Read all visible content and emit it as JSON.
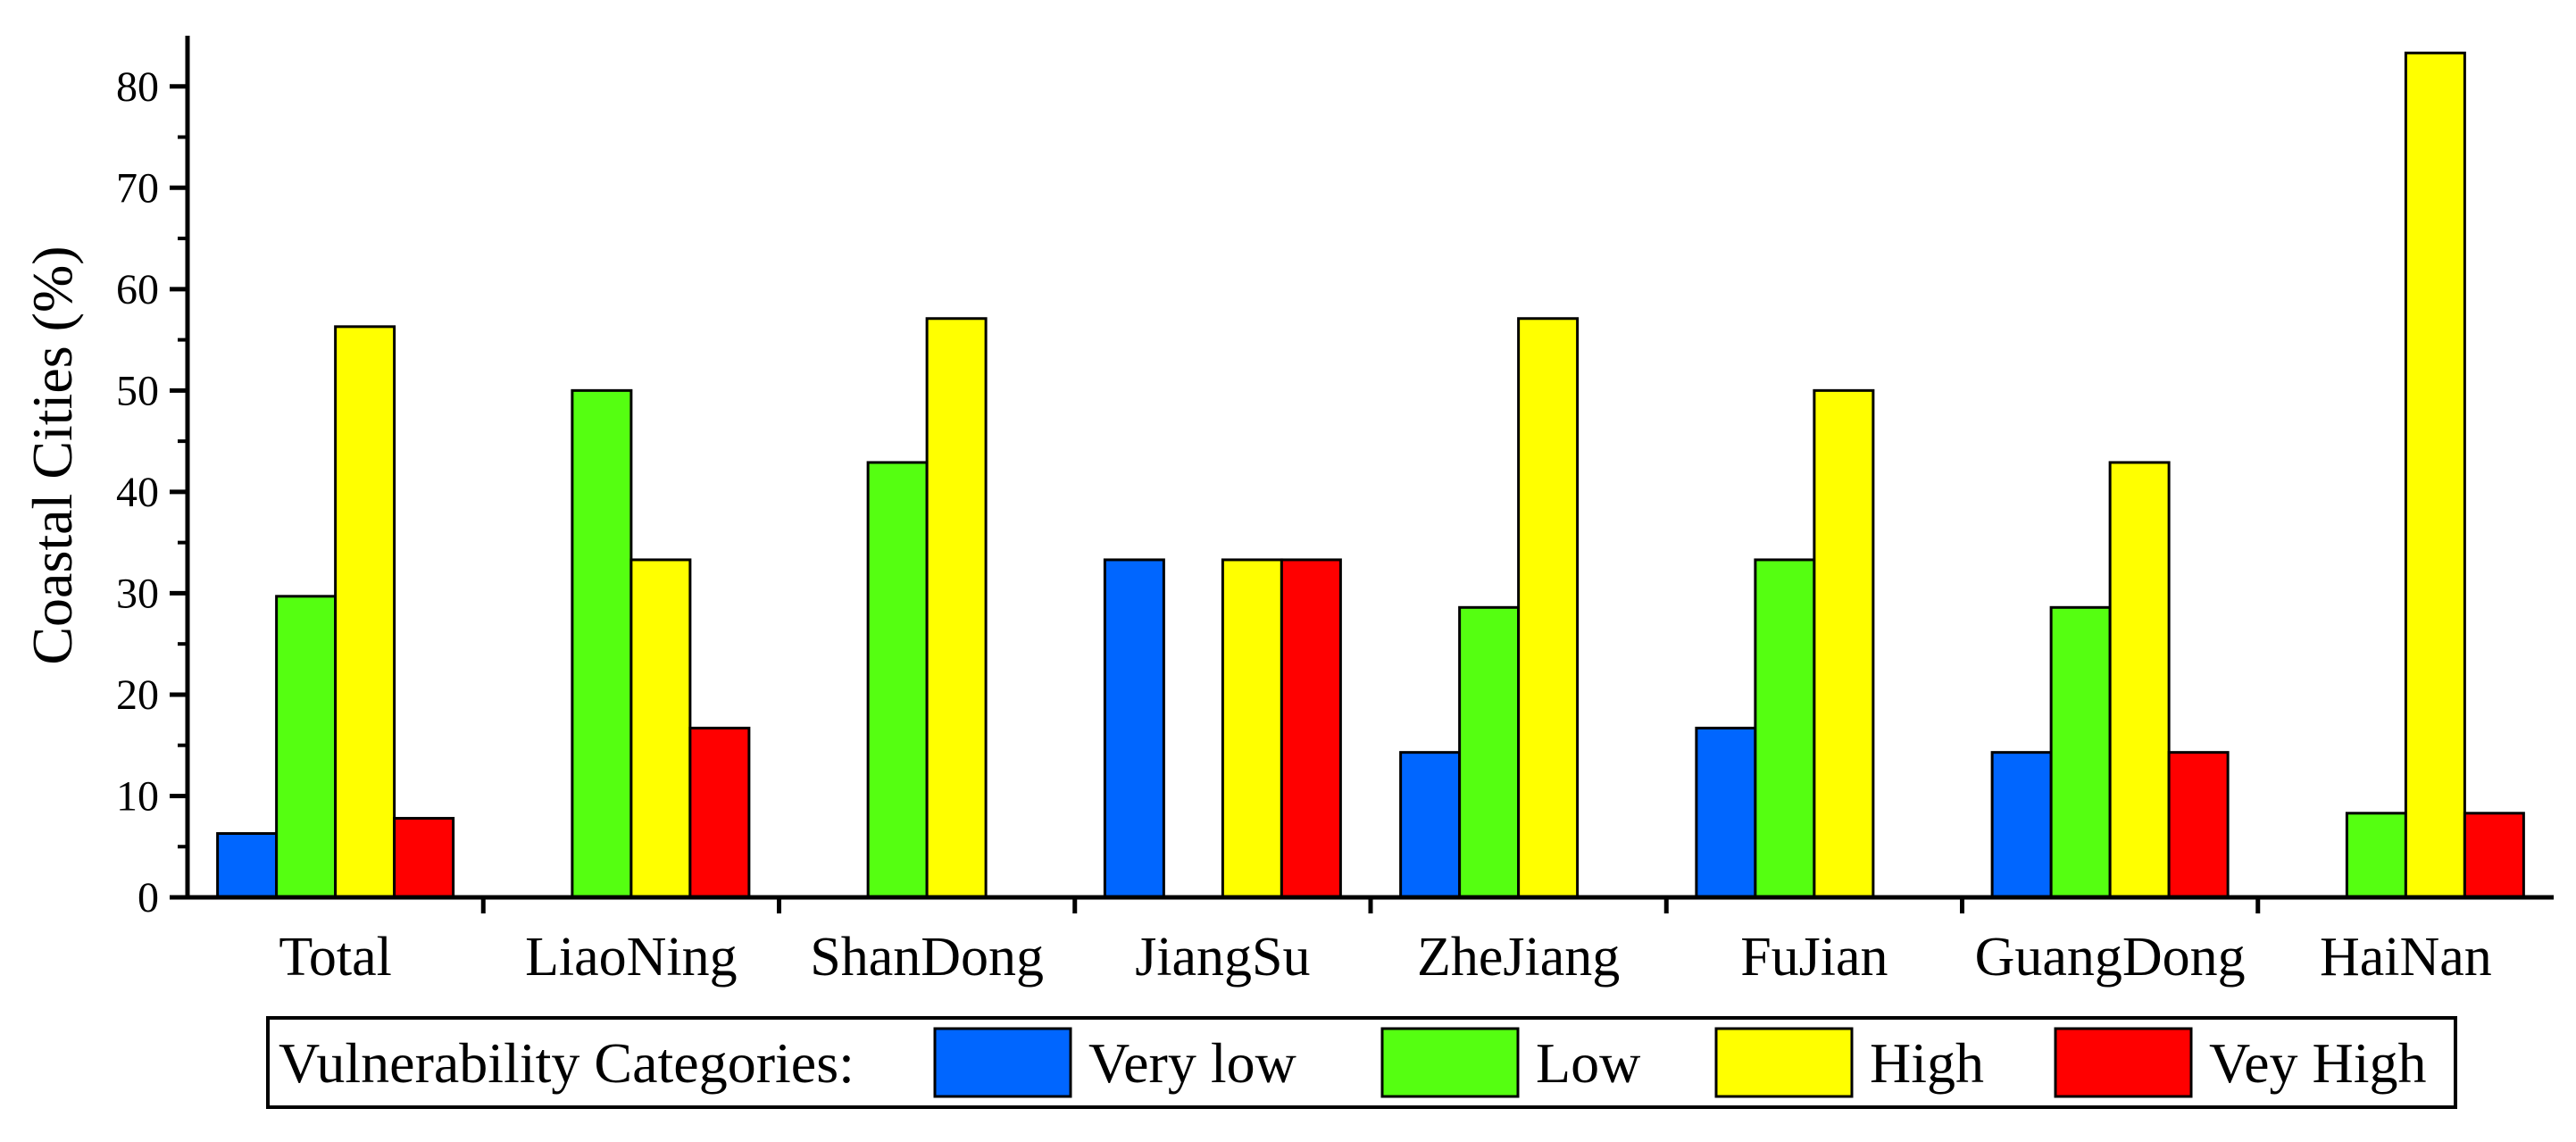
{
  "chart_data": {
    "type": "bar",
    "title": "",
    "xlabel": "",
    "ylabel": "Coastal Cities (%)",
    "ylim": [
      0,
      85
    ],
    "yticks": [
      0,
      10,
      20,
      30,
      40,
      50,
      60,
      70,
      80
    ],
    "categories": [
      "Total",
      "LiaoNing",
      "ShanDong",
      "JiangSu",
      "ZheJiang",
      "FuJian",
      "GuangDong",
      "HaiNan"
    ],
    "series": [
      {
        "name": "Very low",
        "color": "#0066ff",
        "values": [
          6.3,
          0,
          0,
          33.3,
          14.3,
          16.7,
          14.3,
          0
        ]
      },
      {
        "name": "Low",
        "color": "#55ff11",
        "values": [
          29.7,
          50.0,
          42.9,
          0,
          28.6,
          33.3,
          28.6,
          8.3
        ]
      },
      {
        "name": "High",
        "color": "#ffff00",
        "values": [
          56.3,
          33.3,
          57.1,
          33.3,
          57.1,
          50.0,
          42.9,
          83.3
        ]
      },
      {
        "name": "Vey High",
        "color": "#ff0000",
        "values": [
          7.8,
          16.7,
          0,
          33.3,
          0,
          0,
          14.3,
          8.3
        ]
      }
    ],
    "legend": {
      "title": "Vulnerability Categories:",
      "position": "bottom"
    }
  }
}
